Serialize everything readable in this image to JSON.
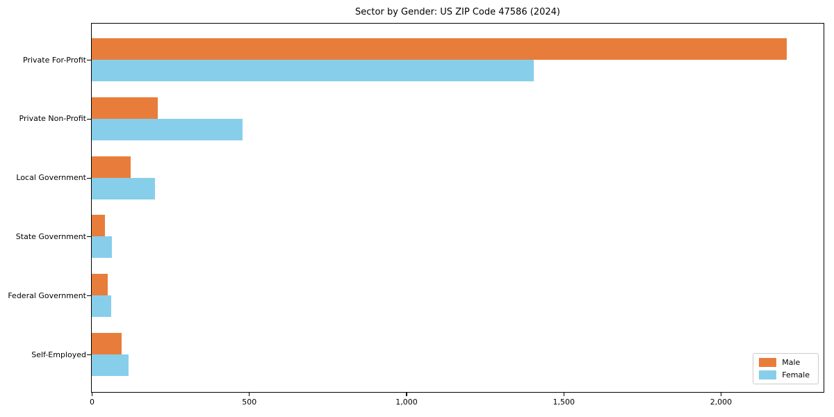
{
  "chart_data": {
    "type": "bar",
    "orientation": "horizontal",
    "title": "Sector by Gender: US ZIP Code 47586 (2024)",
    "xlabel": "",
    "ylabel": "",
    "categories": [
      "Private For-Profit",
      "Private Non-Profit",
      "Local Government",
      "State Government",
      "Federal Government",
      "Self-Employed"
    ],
    "series": [
      {
        "name": "Male",
        "color": "#e87d3b",
        "values": [
          2211,
          209,
          123,
          43,
          51,
          94
        ]
      },
      {
        "name": "Female",
        "color": "#87ceeb",
        "values": [
          1405,
          479,
          202,
          63,
          62,
          117
        ]
      }
    ],
    "xlim": [
      0,
      2325
    ],
    "xticks": [
      0,
      500,
      1000,
      1500,
      2000
    ],
    "xtick_labels": [
      "0",
      "500",
      "1,000",
      "1,500",
      "2,000"
    ],
    "grid": false,
    "legend": {
      "position": "lower right",
      "entries": [
        "Male",
        "Female"
      ]
    }
  }
}
